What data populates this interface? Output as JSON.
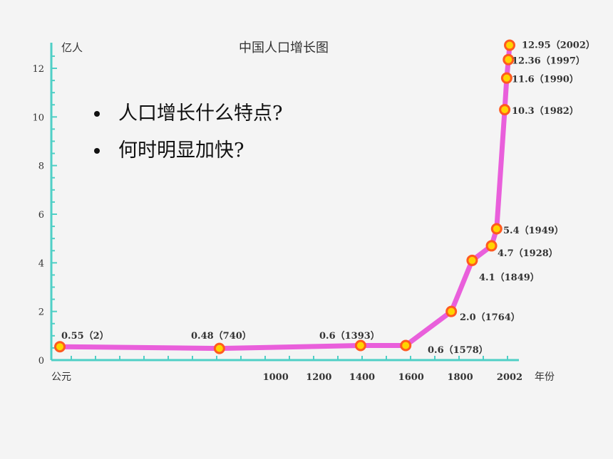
{
  "slide": {
    "bullets": [
      {
        "text": "人口增长什么特点?"
      },
      {
        "text": "何时明显加快?"
      }
    ]
  },
  "colors": {
    "axis": "#4fcfc6",
    "curve": "#e84fd8",
    "point_fill": "#ffd400",
    "point_ring": "#ff5a1f",
    "text": "#333333"
  },
  "chart_data": {
    "type": "line",
    "title": "中国人口增长图",
    "ylabel": "亿人",
    "xlabel": "年份",
    "x_origin_label": "公元",
    "ylim": [
      0,
      13
    ],
    "yticks": [
      0,
      2,
      4,
      6,
      8,
      10,
      12
    ],
    "xticks": [
      1000,
      1200,
      1400,
      1600,
      1800,
      2002
    ],
    "points": [
      {
        "year": 2,
        "value": 0.55,
        "label": "0.55（2）"
      },
      {
        "year": 740,
        "value": 0.48,
        "label": "0.48（740）"
      },
      {
        "year": 1393,
        "value": 0.6,
        "label": "0.6（1393）"
      },
      {
        "year": 1578,
        "value": 0.6,
        "label": "0.6（1578）"
      },
      {
        "year": 1764,
        "value": 2.0,
        "label": "2.0（1764）"
      },
      {
        "year": 1849,
        "value": 4.1,
        "label": "4.1（1849）"
      },
      {
        "year": 1928,
        "value": 4.7,
        "label": "4.7（1928）"
      },
      {
        "year": 1949,
        "value": 5.4,
        "label": "5.4（1949）"
      },
      {
        "year": 1982,
        "value": 10.3,
        "label": "10.3（1982）"
      },
      {
        "year": 1990,
        "value": 11.6,
        "label": "11.6（1990）"
      },
      {
        "year": 1997,
        "value": 12.36,
        "label": "12.36（1997）"
      },
      {
        "year": 2002,
        "value": 12.95,
        "label": "12.95（2002）"
      }
    ]
  }
}
